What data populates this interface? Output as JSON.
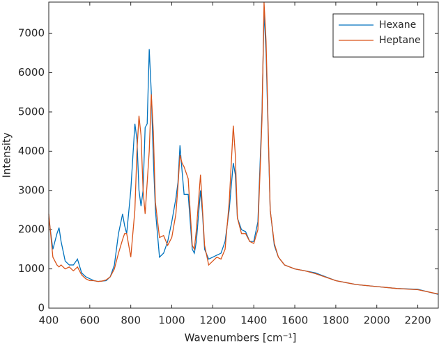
{
  "chart_data": {
    "type": "line",
    "xlabel": "Wavenumbers [cm⁻¹]",
    "ylabel": "Intensity",
    "x": [
      400,
      420,
      440,
      450,
      460,
      480,
      500,
      520,
      540,
      560,
      580,
      600,
      620,
      640,
      660,
      680,
      700,
      720,
      740,
      760,
      770,
      780,
      800,
      820,
      830,
      840,
      850,
      860,
      870,
      880,
      890,
      900,
      910,
      920,
      940,
      960,
      980,
      1000,
      1020,
      1030,
      1040,
      1050,
      1060,
      1080,
      1100,
      1110,
      1120,
      1140,
      1150,
      1160,
      1180,
      1200,
      1220,
      1240,
      1260,
      1280,
      1300,
      1310,
      1320,
      1340,
      1360,
      1380,
      1400,
      1420,
      1440,
      1450,
      1460,
      1480,
      1500,
      1520,
      1550,
      1600,
      1650,
      1700,
      1800,
      1900,
      2000,
      2100,
      2200,
      2300
    ],
    "series": [
      {
        "name": "Hexane",
        "color": "#0072bd",
        "values": [
          2300,
          1500,
          1900,
          2050,
          1700,
          1200,
          1100,
          1100,
          1250,
          900,
          800,
          750,
          700,
          680,
          690,
          700,
          800,
          1100,
          1900,
          2400,
          2100,
          1900,
          3000,
          4700,
          4300,
          3000,
          2600,
          3000,
          4600,
          4700,
          6600,
          5500,
          3800,
          2500,
          1300,
          1400,
          1700,
          2200,
          2800,
          3200,
          4150,
          3500,
          2900,
          2900,
          1500,
          1400,
          1700,
          3000,
          2400,
          1500,
          1250,
          1300,
          1350,
          1400,
          1700,
          2500,
          3700,
          3400,
          2300,
          2000,
          1950,
          1700,
          1700,
          2200,
          5000,
          7550,
          6500,
          2500,
          1600,
          1300,
          1100,
          1000,
          950,
          900,
          700,
          600,
          550,
          500,
          480,
          350
        ]
      },
      {
        "name": "Heptane",
        "color": "#d95319",
        "values": [
          2400,
          1300,
          1100,
          1050,
          1100,
          1000,
          1050,
          950,
          1050,
          850,
          750,
          700,
          700,
          680,
          690,
          720,
          800,
          1000,
          1400,
          1750,
          1900,
          1900,
          1300,
          2500,
          4000,
          4900,
          4400,
          3000,
          2400,
          3200,
          4000,
          5450,
          4500,
          2700,
          1800,
          1850,
          1600,
          1800,
          2400,
          3100,
          3900,
          3700,
          3600,
          3300,
          1600,
          1500,
          2000,
          3400,
          2500,
          1600,
          1100,
          1200,
          1300,
          1250,
          1500,
          2700,
          4650,
          3900,
          2300,
          1900,
          1900,
          1700,
          1650,
          2000,
          4800,
          7800,
          6800,
          2500,
          1650,
          1300,
          1100,
          1000,
          950,
          880,
          700,
          600,
          550,
          500,
          470,
          360
        ]
      }
    ],
    "xlim": [
      400,
      2300
    ],
    "xticks": [
      400,
      600,
      800,
      1000,
      1200,
      1400,
      1600,
      1800,
      2000,
      2200
    ],
    "ylim": [
      0,
      7800
    ],
    "yticks": [
      0,
      1000,
      2000,
      3000,
      4000,
      5000,
      6000,
      7000
    ],
    "grid": false,
    "legend": "upper right"
  }
}
